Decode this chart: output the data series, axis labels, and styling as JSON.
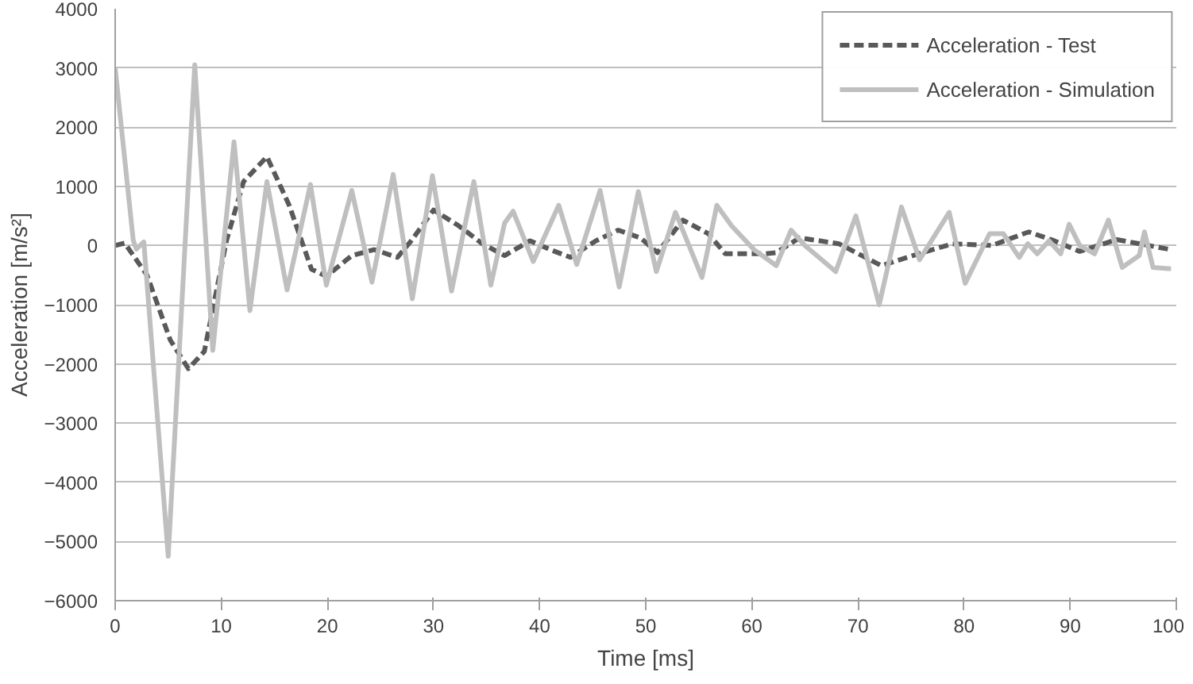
{
  "chart_data": {
    "type": "line",
    "xlabel": "Time [ms]",
    "ylabel": "Acceleration [m/s²]",
    "xlim": [
      0,
      100
    ],
    "xticks": [
      0,
      10,
      20,
      30,
      40,
      50,
      60,
      70,
      80,
      90,
      100
    ],
    "ylim": [
      -6000,
      4000
    ],
    "yticks": [
      -6000,
      -5000,
      -4000,
      -3000,
      -2000,
      -1000,
      0,
      1000,
      2000,
      3000,
      4000
    ],
    "grid": "y",
    "legend": "top right",
    "series": [
      {
        "name": "Acceleration - Test",
        "color": "#595959",
        "line_style": "dashed",
        "x": [
          0,
          0.9,
          3.0,
          5.2,
          6.9,
          8.4,
          10.5,
          12.1,
          14.3,
          16.4,
          18.5,
          19.9,
          22.3,
          24.4,
          26.6,
          27.9,
          30.0,
          32.4,
          34.6,
          36.7,
          39.1,
          41.0,
          42.9,
          45.3,
          47.4,
          49.5,
          51.1,
          53.5,
          55.9,
          57.5,
          61.3,
          62.3,
          64.5,
          68.2,
          72.2,
          75.7,
          78.9,
          82.6,
          86.1,
          88.5,
          90.9,
          94.4,
          99.5
        ],
        "values": [
          0,
          40,
          -500,
          -1600,
          -2080,
          -1790,
          90,
          1080,
          1500,
          680,
          -400,
          -520,
          -170,
          -70,
          -200,
          80,
          600,
          330,
          30,
          -170,
          80,
          -70,
          -200,
          80,
          260,
          130,
          -120,
          430,
          200,
          -140,
          -140,
          -120,
          130,
          30,
          -340,
          -140,
          30,
          0,
          230,
          80,
          -100,
          100,
          -70
        ]
      },
      {
        "name": "Acceleration - Simulation",
        "color": "#bfbfbf",
        "line_style": "solid",
        "x": [
          0,
          1.7,
          2.0,
          2.7,
          5.0,
          7.5,
          9.2,
          11.2,
          12.7,
          14.3,
          16.2,
          18.4,
          19.9,
          22.3,
          24.2,
          26.2,
          28.0,
          29.9,
          31.7,
          33.8,
          35.4,
          36.7,
          37.5,
          39.4,
          41.8,
          43.5,
          45.7,
          47.5,
          49.3,
          51.0,
          52.8,
          55.3,
          56.7,
          58.1,
          60.2,
          62.3,
          63.7,
          65.0,
          67.9,
          69.8,
          72.0,
          74.1,
          75.8,
          78.6,
          80.1,
          82.4,
          83.7,
          85.2,
          86.0,
          86.9,
          88.0,
          89.1,
          89.9,
          90.9,
          92.3,
          93.6,
          94.9,
          96.5,
          97.0,
          97.8,
          99.2,
          99.5
        ],
        "values": [
          3000,
          90,
          -60,
          60,
          -5250,
          3050,
          -1770,
          1750,
          -1100,
          1080,
          -750,
          1030,
          -670,
          930,
          -620,
          1200,
          -900,
          1180,
          -770,
          1080,
          -670,
          380,
          580,
          -270,
          680,
          -320,
          930,
          -700,
          910,
          -440,
          560,
          -540,
          680,
          330,
          -70,
          -340,
          260,
          0,
          -440,
          500,
          -1000,
          650,
          -240,
          560,
          -640,
          200,
          200,
          -200,
          30,
          -140,
          80,
          -140,
          360,
          0,
          -140,
          430,
          -370,
          -170,
          230,
          -370,
          -390,
          -390
        ]
      }
    ]
  }
}
